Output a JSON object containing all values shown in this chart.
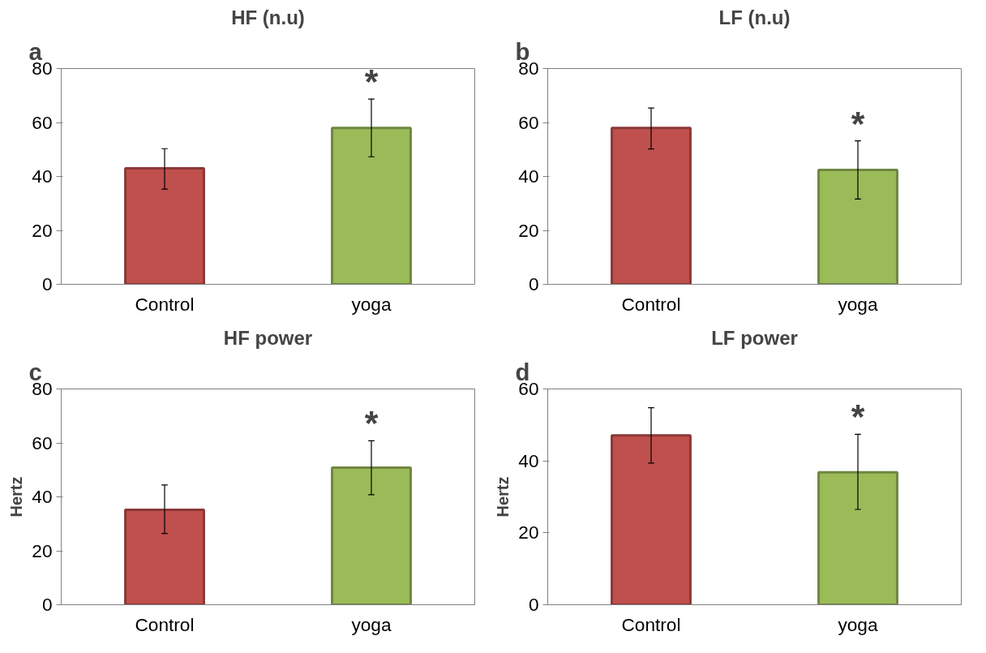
{
  "chart_data": [
    {
      "type": "bar",
      "title": "HF (n.u)",
      "categories": [
        "Control",
        "yoga"
      ],
      "values": [
        43,
        58
      ],
      "colors": [
        "#c0504d",
        "#9bbb59"
      ],
      "errors": [
        [
          35.3,
          50.3
        ],
        [
          47.3,
          68.7
        ]
      ],
      "ylim": [
        0,
        80
      ],
      "yticks": [
        0,
        20,
        40,
        60,
        80
      ],
      "grid": false,
      "annotations": [
        "a",
        "*"
      ]
    },
    {
      "type": "bar",
      "title": "LF (n.u)",
      "categories": [
        "Control",
        "yoga"
      ],
      "values": [
        58,
        42.4
      ],
      "colors": [
        "#c0504d",
        "#9bbb59"
      ],
      "errors": [
        [
          50.2,
          65.4
        ],
        [
          31.6,
          53.2
        ]
      ],
      "ylim": [
        0,
        80
      ],
      "yticks": [
        0,
        20,
        40,
        60,
        80
      ],
      "grid": false,
      "annotations": [
        "b",
        "*"
      ]
    },
    {
      "type": "bar",
      "title": "HF power",
      "ylabel": "Hertz",
      "categories": [
        "Control",
        "yoga"
      ],
      "values": [
        35.2,
        50.8
      ],
      "colors": [
        "#c0504d",
        "#9bbb59"
      ],
      "errors": [
        [
          26.4,
          44.4
        ],
        [
          40.8,
          60.8
        ]
      ],
      "ylim": [
        0,
        80
      ],
      "yticks": [
        0,
        20,
        40,
        60,
        80
      ],
      "grid": false,
      "annotations": [
        "c",
        "*"
      ]
    },
    {
      "type": "bar",
      "title": "LF power",
      "ylabel": "Hertz",
      "categories": [
        "Control",
        "yoga"
      ],
      "values": [
        47.1,
        36.8
      ],
      "colors": [
        "#c0504d",
        "#9bbb59"
      ],
      "errors": [
        [
          39.4,
          54.8
        ],
        [
          26.5,
          47.4
        ]
      ],
      "ylim": [
        0,
        60
      ],
      "yticks": [
        0,
        20,
        40,
        60
      ],
      "grid": false,
      "annotations": [
        "d",
        "*"
      ]
    }
  ]
}
